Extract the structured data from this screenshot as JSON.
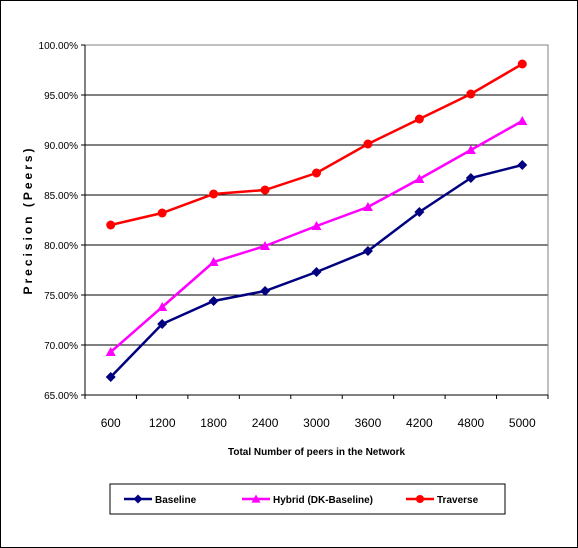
{
  "chart_data": {
    "type": "line",
    "title": "",
    "xlabel": "Total Number of peers in the Network",
    "ylabel": "Precision (Peers)",
    "categories": [
      "600",
      "1200",
      "1800",
      "2400",
      "3000",
      "3600",
      "4200",
      "4800",
      "5000"
    ],
    "ylim": [
      65,
      100
    ],
    "y_ticks": [
      "65.00%",
      "70.00%",
      "75.00%",
      "80.00%",
      "85.00%",
      "90.00%",
      "95.00%",
      "100.00%"
    ],
    "grid": true,
    "legend_position": "bottom",
    "series": [
      {
        "name": "Baseline",
        "color": "#000080",
        "marker": "diamond",
        "values": [
          66.8,
          72.1,
          74.4,
          75.4,
          77.3,
          79.4,
          83.3,
          86.7,
          88.0
        ]
      },
      {
        "name": "Hybrid (DK-Baseline)",
        "color": "#ff00ff",
        "marker": "triangle",
        "values": [
          69.3,
          73.8,
          78.3,
          79.9,
          81.9,
          83.8,
          86.6,
          89.5,
          92.4
        ]
      },
      {
        "name": "Traverse",
        "color": "#ff0000",
        "marker": "circle",
        "values": [
          82.0,
          83.2,
          85.1,
          85.5,
          87.2,
          90.1,
          92.6,
          95.1,
          98.1
        ]
      }
    ]
  }
}
